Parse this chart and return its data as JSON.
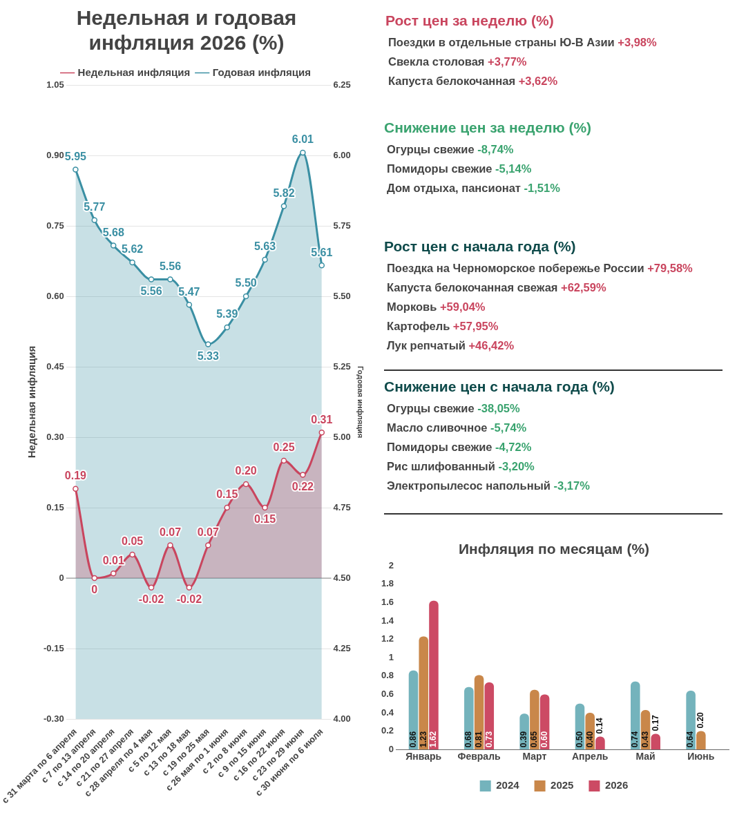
{
  "chart_data": [
    {
      "type": "area",
      "title": "Недельная и годовая инфляция 2026 (%)",
      "ylabel": "Недельная инфляция",
      "y2label": "Годовая инфляция",
      "categories": [
        "с 31 марта по 6 апреля",
        "с 7 по 13 апреля",
        "с 14 по 20 апреля",
        "с 21 по 27 апреля",
        "с 28 апреля по 4 мая",
        "с 5 по 12 мая",
        "с 13 по 18 мая",
        "с 19 по 25 мая",
        "с 26 мая по 1 июня",
        "с 2 по 8 июня",
        "с 9 по 15 июня",
        "с 16 по 22 июня",
        "с 23 по 29 июня",
        "с 30 июня по 6 июля"
      ],
      "series": [
        {
          "name": "Недельная инфляция",
          "color": "#c9455e",
          "values": [
            0.19,
            0,
            0.01,
            0.05,
            -0.02,
            0.07,
            -0.02,
            0.07,
            0.15,
            0.2,
            0.15,
            0.25,
            0.22,
            0.31
          ],
          "value_labels": [
            "0.19",
            "0",
            "0.01",
            "0.05",
            "-0.02",
            "0.07",
            "-0.02",
            "0.07",
            "0.15",
            "0.20",
            "0.15",
            "0.25",
            "0.22",
            "0.31"
          ]
        },
        {
          "name": "Годовая инфляция",
          "color": "#3a8fa3",
          "axis": "y2",
          "values": [
            5.95,
            5.77,
            5.68,
            5.62,
            5.56,
            5.56,
            5.47,
            5.33,
            5.39,
            5.5,
            5.63,
            5.82,
            6.01,
            5.61
          ],
          "value_labels": [
            "5.95",
            "5.77",
            "5.68",
            "5.62",
            "5.56",
            "5.56",
            "5.47",
            "5.33",
            "5.39",
            "5.50",
            "5.63",
            "5.82",
            "6.01",
            "5.61"
          ]
        }
      ],
      "ylim": [
        -0.3,
        1.05
      ],
      "yticks": [
        {
          "value": 1.05,
          "label": "1.05"
        },
        {
          "value": 0.9,
          "label": "0.90"
        },
        {
          "value": 0.75,
          "label": "0.75"
        },
        {
          "value": 0.6,
          "label": "0.60"
        },
        {
          "value": 0.45,
          "label": "0.45"
        },
        {
          "value": 0.3,
          "label": "0.30"
        },
        {
          "value": 0.15,
          "label": "0.15"
        },
        {
          "value": 0,
          "label": "0"
        },
        {
          "value": -0.15,
          "label": "-0.15"
        },
        {
          "value": -0.3,
          "label": "-0.30"
        }
      ],
      "y2lim": [
        4,
        6.25
      ],
      "y2ticks": [
        {
          "value": 6.25,
          "label": "6.25"
        },
        {
          "value": 6,
          "label": "6.00"
        },
        {
          "value": 5.75,
          "label": "5.75"
        },
        {
          "value": 5.5,
          "label": "5.50"
        },
        {
          "value": 5.25,
          "label": "5.25"
        },
        {
          "value": 5,
          "label": "5.00"
        },
        {
          "value": 4.75,
          "label": "4.75"
        },
        {
          "value": 4.5,
          "label": "4.50"
        },
        {
          "value": 4.25,
          "label": "4.25"
        },
        {
          "value": 4,
          "label": "4.00"
        }
      ],
      "marker": "circle",
      "grid": "y",
      "legend": "top"
    },
    {
      "type": "other",
      "title": "Рост цен за неделю (%)",
      "annotations": [
        "Поездки в отдельные страны Ю-В Азии +3,98%",
        "Свекла столовая +3,77%",
        "Капуста белокочанная +3,62%"
      ]
    },
    {
      "type": "other",
      "title": "Снижение цен за неделю (%)",
      "annotations": [
        "Огурцы свежие -8,74%",
        "Помидоры свежие -5,14%",
        "Дом отдыха, пансионат -1,51%"
      ]
    },
    {
      "type": "other",
      "title": "Рост цен с начала года (%)",
      "annotations": [
        "Поездка на Черноморское побережье России +79,58%",
        "Капуста белокочанная свежая +62,59%",
        "Морковь +59,04%",
        "Картофель +57,95%",
        "Лук репчатый +46,42%"
      ]
    },
    {
      "type": "other",
      "title": "Снижение цен с начала года (%)",
      "annotations": [
        "Огурцы свежие -38,05%",
        "Масло сливочное -5,74%",
        "Помидоры свежие -4,72%",
        "Рис шлифованный -3,20%",
        "Электропылесос напольный -3,17%"
      ]
    },
    {
      "type": "bar",
      "title": "Инфляция по месяцам (%)",
      "categories": [
        "Январь",
        "Февраль",
        "Март",
        "Апрель",
        "Май",
        "Июнь"
      ],
      "series": [
        {
          "name": "2024",
          "color": "#74b3bc",
          "values": [
            0.86,
            0.68,
            0.39,
            0.5,
            0.74,
            0.64
          ],
          "value_labels": [
            "0.86",
            "0.68",
            "0.39",
            "0.50",
            "0.74",
            "0.64"
          ]
        },
        {
          "name": "2025",
          "color": "#c9874a",
          "values": [
            1.23,
            0.81,
            0.65,
            0.4,
            0.43,
            0.2
          ],
          "value_labels": [
            "1.23",
            "0.81",
            "0.65",
            "0.40",
            "0.43",
            "0.20"
          ]
        },
        {
          "name": "2026",
          "color": "#cc4a64",
          "values": [
            1.62,
            0.73,
            0.6,
            0.14,
            0.17,
            null
          ],
          "value_labels": [
            "1.62",
            "0.73",
            "0.60",
            "0.14",
            "0.17",
            null
          ]
        }
      ],
      "ylim": [
        0,
        2
      ],
      "yticks": [
        0,
        0.2,
        0.4,
        0.6,
        0.8,
        1,
        1.2,
        1.4,
        1.6,
        1.8,
        2
      ],
      "legend": "bottom"
    }
  ]
}
